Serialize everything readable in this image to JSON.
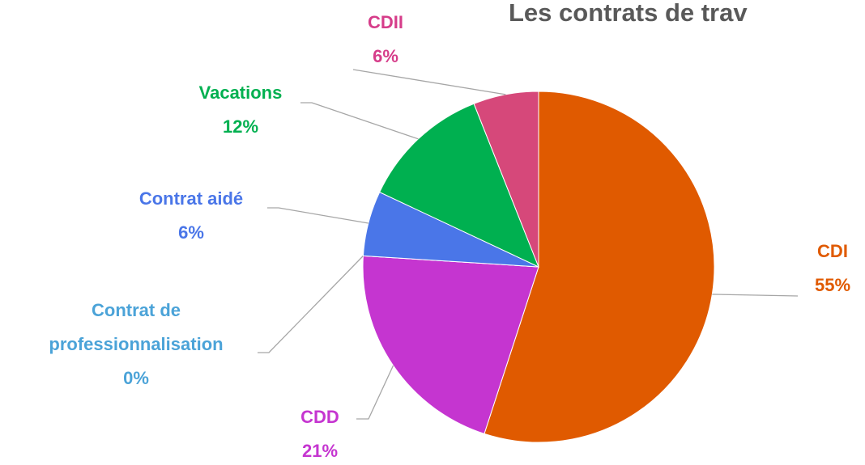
{
  "chart_data": {
    "type": "pie",
    "title": "Les contrats de trav",
    "categories": [
      "CDI",
      "CDD",
      "Contrat de professionnalisation",
      "Contrat aidé",
      "Vacations",
      "CDII"
    ],
    "values": [
      55,
      21,
      0,
      6,
      12,
      6
    ],
    "value_labels": [
      "55%",
      "21%",
      "0%",
      "6%",
      "12%",
      "6%"
    ],
    "colors": [
      "#e05a00",
      "#c535d0",
      "#4ba3d8",
      "#4a76e8",
      "#00b050",
      "#d6487a"
    ],
    "label_colors": [
      "#e05a00",
      "#c535d0",
      "#4ba3d8",
      "#4a76e8",
      "#00b050",
      "#d63d8a"
    ]
  }
}
